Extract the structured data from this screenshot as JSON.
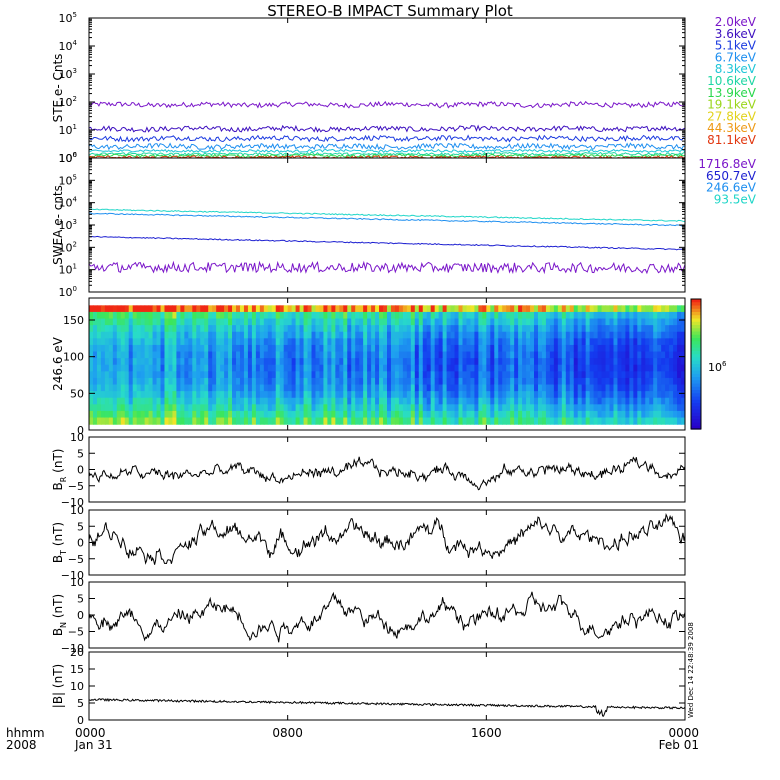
{
  "title": "STEREO-B IMPACT Summary Plot",
  "timestamp_stamp": "Wed Dec 14 22:48:39 2008",
  "colors": {
    "frame": "#000000",
    "trace": "#000000",
    "background": "#ffffff"
  },
  "chart_data": [
    {
      "id": "ste",
      "type": "line",
      "ylabel": "STE e- Cnts",
      "yscale": "log",
      "ylim": [
        1,
        100000
      ],
      "yticks": [
        1,
        10,
        100,
        1000,
        10000,
        100000
      ],
      "ytick_labels": [
        {
          "base": "10",
          "exp": "0"
        },
        {
          "base": "10",
          "exp": "1"
        },
        {
          "base": "10",
          "exp": "2"
        },
        {
          "base": "10",
          "exp": "3"
        },
        {
          "base": "10",
          "exp": "4"
        },
        {
          "base": "10",
          "exp": "5"
        }
      ],
      "legend_placement": "right",
      "legend": [
        {
          "label": "2.0keV",
          "color": "#7a16c9"
        },
        {
          "label": "3.6keV",
          "color": "#3d0fbf"
        },
        {
          "label": "5.1keV",
          "color": "#1c3be0"
        },
        {
          "label": "6.7keV",
          "color": "#1e8ff0"
        },
        {
          "label": "8.3keV",
          "color": "#1fc6d8"
        },
        {
          "label": "10.6keV",
          "color": "#1ed6a4"
        },
        {
          "label": "13.9keV",
          "color": "#2ad74c"
        },
        {
          "label": "19.1keV",
          "color": "#9ad61b"
        },
        {
          "label": "27.8keV",
          "color": "#e2d21a"
        },
        {
          "label": "44.3keV",
          "color": "#ee9a16"
        },
        {
          "label": "81.1keV",
          "color": "#e2360f"
        }
      ],
      "series": [
        {
          "color": "#7a16c9",
          "level": 80
        },
        {
          "color": "#3d0fbf",
          "level": 11
        },
        {
          "color": "#1c3be0",
          "level": 5
        },
        {
          "color": "#1e8ff0",
          "level": 2.6
        },
        {
          "color": "#1fc6d8",
          "level": 1.8
        },
        {
          "color": "#1ed6a4",
          "level": 1.4
        },
        {
          "color": "#2ad74c",
          "level": 1.2
        },
        {
          "color": "#e2360f",
          "level": 1.05
        }
      ]
    },
    {
      "id": "swea",
      "type": "line",
      "ylabel": "SWEA e- cnts",
      "yscale": "log",
      "ylim": [
        1,
        1000000
      ],
      "yticks": [
        1,
        10,
        100,
        1000,
        10000,
        100000,
        1000000
      ],
      "ytick_labels": [
        {
          "base": "10",
          "exp": "0"
        },
        {
          "base": "10",
          "exp": "1"
        },
        {
          "base": "10",
          "exp": "2"
        },
        {
          "base": "10",
          "exp": "3"
        },
        {
          "base": "10",
          "exp": "4"
        },
        {
          "base": "10",
          "exp": "5"
        },
        {
          "base": "10",
          "exp": "6"
        }
      ],
      "legend_placement": "right",
      "legend": [
        {
          "label": "1716.8eV",
          "color": "#7a16c9"
        },
        {
          "label": "650.7eV",
          "color": "#1c1fd1"
        },
        {
          "label": "246.6eV",
          "color": "#1e8ff0"
        },
        {
          "label": "93.5eV",
          "color": "#1fd6c8"
        }
      ],
      "series": [
        {
          "color": "#1fd6c8",
          "start": 5000,
          "end": 1500
        },
        {
          "color": "#1e8ff0",
          "start": 3300,
          "end": 950
        },
        {
          "color": "#1c1fd1",
          "start": 300,
          "end": 80
        },
        {
          "color": "#7a16c9",
          "start": 13,
          "end": 12
        }
      ]
    },
    {
      "id": "pad",
      "type": "heatmap",
      "ylabel": "246.6 eV",
      "ylim": [
        0,
        180
      ],
      "yticks": [
        0,
        50,
        100,
        150
      ],
      "ytick_labels": [
        "0",
        "50",
        "100",
        "150"
      ],
      "colorbar_label": {
        "base": "10",
        "exp": "6"
      }
    },
    {
      "id": "br",
      "type": "line",
      "ylabel": {
        "base": "B",
        "sub": "R",
        "rest": " (nT)"
      },
      "ylim": [
        -10,
        10
      ],
      "yticks": [
        -10,
        -5,
        0,
        5,
        10
      ],
      "ytick_labels": [
        "−10",
        "−5",
        "0",
        "5",
        "10"
      ],
      "series": [
        {
          "mean": -2
        }
      ]
    },
    {
      "id": "bt",
      "type": "line",
      "ylabel": {
        "base": "B",
        "sub": "T",
        "rest": " (nT)"
      },
      "ylim": [
        -10,
        10
      ],
      "yticks": [
        -10,
        -5,
        0,
        5,
        10
      ],
      "ytick_labels": [
        "−10",
        "−5",
        "0",
        "5",
        "10"
      ],
      "series": [
        {
          "mean": 1.5
        }
      ]
    },
    {
      "id": "bn",
      "type": "line",
      "ylabel": {
        "base": "B",
        "sub": "N",
        "rest": " (nT)"
      },
      "ylim": [
        -10,
        10
      ],
      "yticks": [
        -10,
        -5,
        0,
        5,
        10
      ],
      "ytick_labels": [
        "−10",
        "−5",
        "0",
        "5",
        "10"
      ],
      "series": [
        {
          "mean": 0
        }
      ]
    },
    {
      "id": "bmag",
      "type": "line",
      "ylabel": "|B| (nT)",
      "ylim": [
        0,
        20
      ],
      "yticks": [
        0,
        5,
        10,
        15,
        20
      ],
      "ytick_labels": [
        "0",
        "5",
        "10",
        "15",
        "20"
      ],
      "series": [
        {
          "start": 6,
          "end": 3.5
        }
      ]
    }
  ],
  "x_axis": {
    "range_hours": [
      0,
      24
    ],
    "ticks_hours": [
      0,
      8,
      16,
      24
    ],
    "tick_labels": [
      "0000",
      "0800",
      "1600",
      "0000"
    ],
    "date_labels": [
      "Jan 31",
      "Feb 01"
    ],
    "left_caption_top": "hhmm",
    "left_caption_bottom": "2008"
  }
}
